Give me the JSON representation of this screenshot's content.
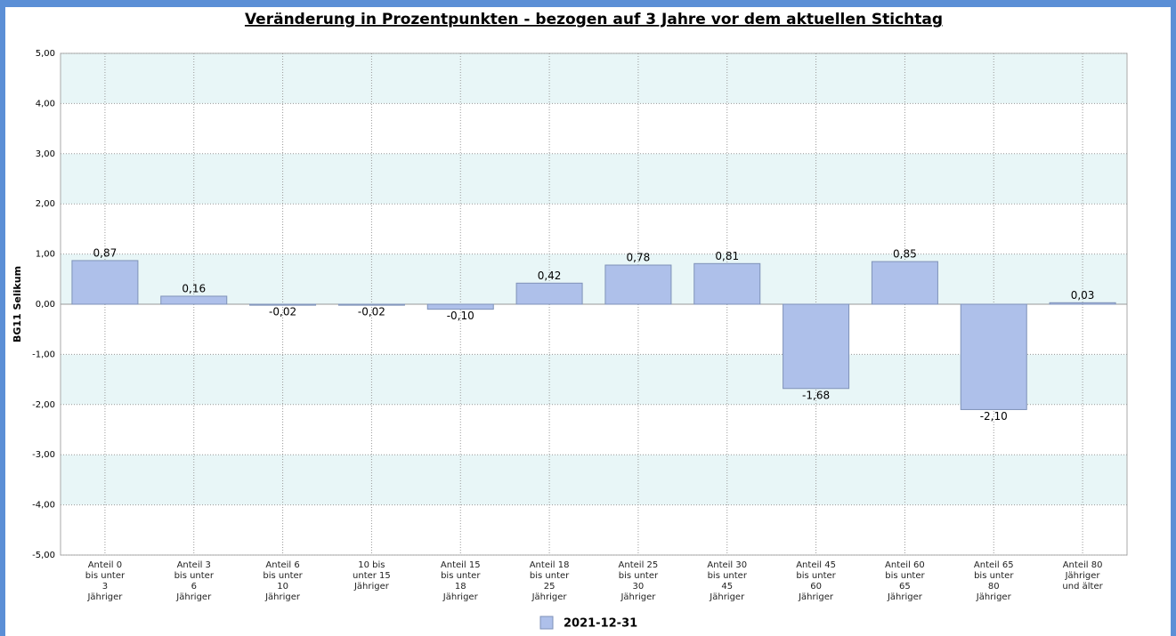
{
  "chart_data": {
    "type": "bar",
    "title": "Veränderung in Prozentpunkten - bezogen auf 3 Jahre vor dem aktuellen Stichtag",
    "y_label": "BG11 Selikum",
    "categories": [
      "Anteil 0\nbis unter\n3\nJähriger",
      "Anteil 3\nbis unter\n6\nJähriger",
      "Anteil 6\nbis unter\n10\nJähriger",
      "10 bis\nunter 15\nJähriger",
      "Anteil 15\nbis unter\n18\nJähriger",
      "Anteil 18\nbis unter\n25\nJähriger",
      "Anteil 25\nbis unter\n30\nJähriger",
      "Anteil 30\nbis unter\n45\nJähriger",
      "Anteil 45\nbis unter\n60\nJähriger",
      "Anteil 60\nbis unter\n65\nJähriger",
      "Anteil 65\nbis unter\n80\nJähriger",
      "Anteil 80\nJähriger\nund älter"
    ],
    "series": [
      {
        "name": "2021-12-31",
        "color": "#aec0ea",
        "values": [
          0.87,
          0.16,
          -0.02,
          -0.02,
          -0.1,
          0.42,
          0.78,
          0.81,
          -1.68,
          0.85,
          -2.1,
          0.03
        ],
        "value_labels": [
          "0,87",
          "0,16",
          "-0,02",
          "-0,02",
          "-0,10",
          "0,42",
          "0,78",
          "0,81",
          "-1,68",
          "0,85",
          "-2,10",
          "0,03"
        ]
      }
    ],
    "ylim": [
      -5,
      5
    ],
    "yticks": [
      {
        "value": -5,
        "label": "-5,00"
      },
      {
        "value": -4,
        "label": "-4,00"
      },
      {
        "value": -3,
        "label": "-3,00"
      },
      {
        "value": -2,
        "label": "-2,00"
      },
      {
        "value": -1,
        "label": "-1,00"
      },
      {
        "value": 0,
        "label": "0,00"
      },
      {
        "value": 1,
        "label": "1,00"
      },
      {
        "value": 2,
        "label": "2,00"
      },
      {
        "value": 3,
        "label": "3,00"
      },
      {
        "value": 4,
        "label": "4,00"
      },
      {
        "value": 5,
        "label": "5,00"
      }
    ],
    "grid": true,
    "legend": "bottom"
  }
}
